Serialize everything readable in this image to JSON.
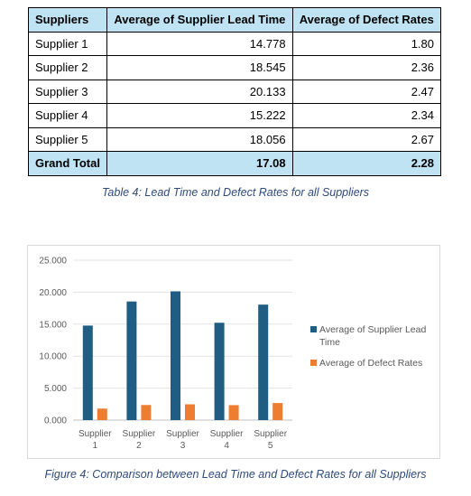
{
  "table": {
    "headers": [
      "Suppliers",
      "Average of Supplier Lead Time",
      "Average of Defect Rates"
    ],
    "rows": [
      [
        "Supplier 1",
        "14.778",
        "1.80"
      ],
      [
        "Supplier 2",
        "18.545",
        "2.36"
      ],
      [
        "Supplier 3",
        "20.133",
        "2.47"
      ],
      [
        "Supplier 4",
        "15.222",
        "2.34"
      ],
      [
        "Supplier 5",
        "18.056",
        "2.67"
      ]
    ],
    "total": [
      "Grand Total",
      "17.08",
      "2.28"
    ],
    "caption": "Table 4: Lead Time and Defect Rates for all Suppliers"
  },
  "figure": {
    "caption": "Figure 4: Comparison between Lead Time and Defect Rates for all Suppliers"
  },
  "chart_data": {
    "type": "bar",
    "categories": [
      [
        "Supplier",
        "1"
      ],
      [
        "Supplier",
        "2"
      ],
      [
        "Supplier",
        "3"
      ],
      [
        "Supplier",
        "4"
      ],
      [
        "Supplier",
        "5"
      ]
    ],
    "series": [
      {
        "name": "Average of Supplier Lead Time",
        "values": [
          14.778,
          18.545,
          20.133,
          15.222,
          18.056
        ],
        "color": "#1f5d82"
      },
      {
        "name": "Average of Defect Rates",
        "values": [
          1.8,
          2.36,
          2.47,
          2.34,
          2.67
        ],
        "color": "#ed7d31"
      }
    ],
    "yticks": [
      "0.000",
      "5.000",
      "10.000",
      "15.000",
      "20.000",
      "25.000"
    ],
    "ylim": [
      0,
      25
    ],
    "grid": true,
    "legend": "right"
  }
}
